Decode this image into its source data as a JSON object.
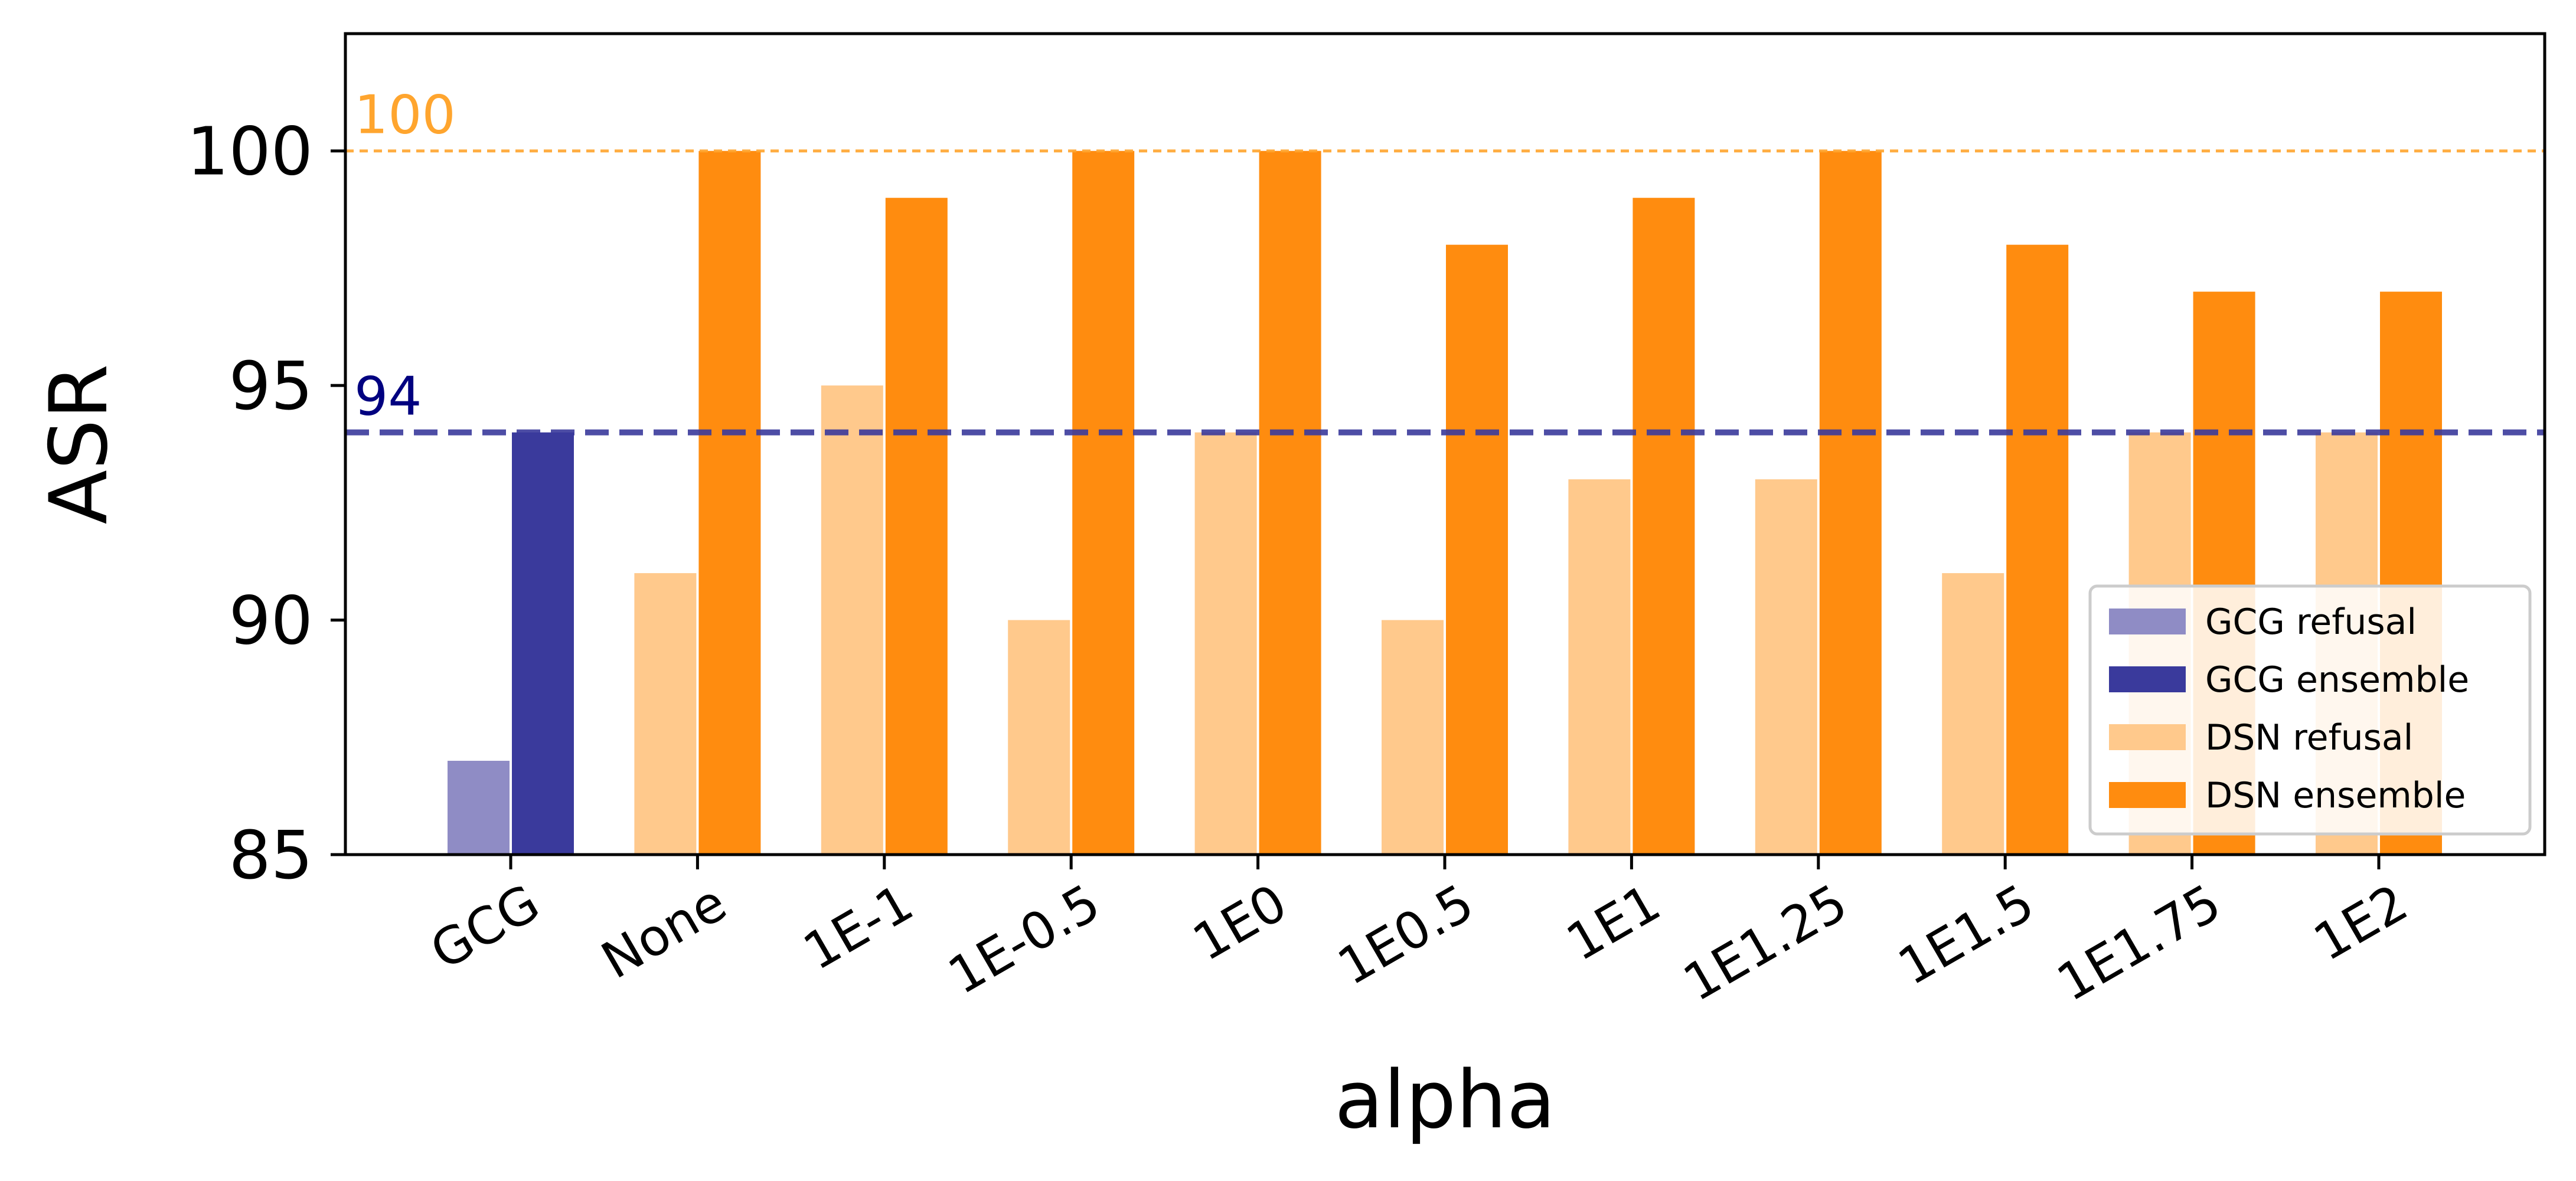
{
  "chart_data": {
    "type": "bar",
    "xlabel": "alpha",
    "ylabel": "ASR",
    "ylim": [
      85,
      102.5
    ],
    "yticks": [
      85,
      90,
      95,
      100
    ],
    "categories": [
      "GCG",
      "None",
      "1E-1",
      "1E-0.5",
      "1E0",
      "1E0.5",
      "1E1",
      "1E1.25",
      "1E1.5",
      "1E1.75",
      "1E2"
    ],
    "series": [
      {
        "name": "GCG refusal",
        "color": "#8f8cc5",
        "values": [
          87,
          null,
          null,
          null,
          null,
          null,
          null,
          null,
          null,
          null,
          null
        ]
      },
      {
        "name": "GCG ensemble",
        "color": "#3a3a9c",
        "values": [
          94,
          null,
          null,
          null,
          null,
          null,
          null,
          null,
          null,
          null,
          null
        ]
      },
      {
        "name": "DSN refusal",
        "color": "#ffc98c",
        "values": [
          null,
          91,
          95,
          90,
          94,
          90,
          93,
          93,
          91,
          94,
          94
        ]
      },
      {
        "name": "DSN ensemble",
        "color": "#ff8c0f",
        "values": [
          null,
          100,
          99,
          100,
          100,
          98,
          99,
          100,
          98,
          97,
          97
        ]
      }
    ],
    "reference_lines": [
      {
        "value": 100,
        "label": "100",
        "color": "#ffa52e",
        "style": "dotted"
      },
      {
        "value": 94,
        "label": "94",
        "color": "#3a3a9c",
        "label_color": "#000080",
        "style": "dashed"
      }
    ],
    "legend_placement": "lower-right",
    "grid": false
  }
}
